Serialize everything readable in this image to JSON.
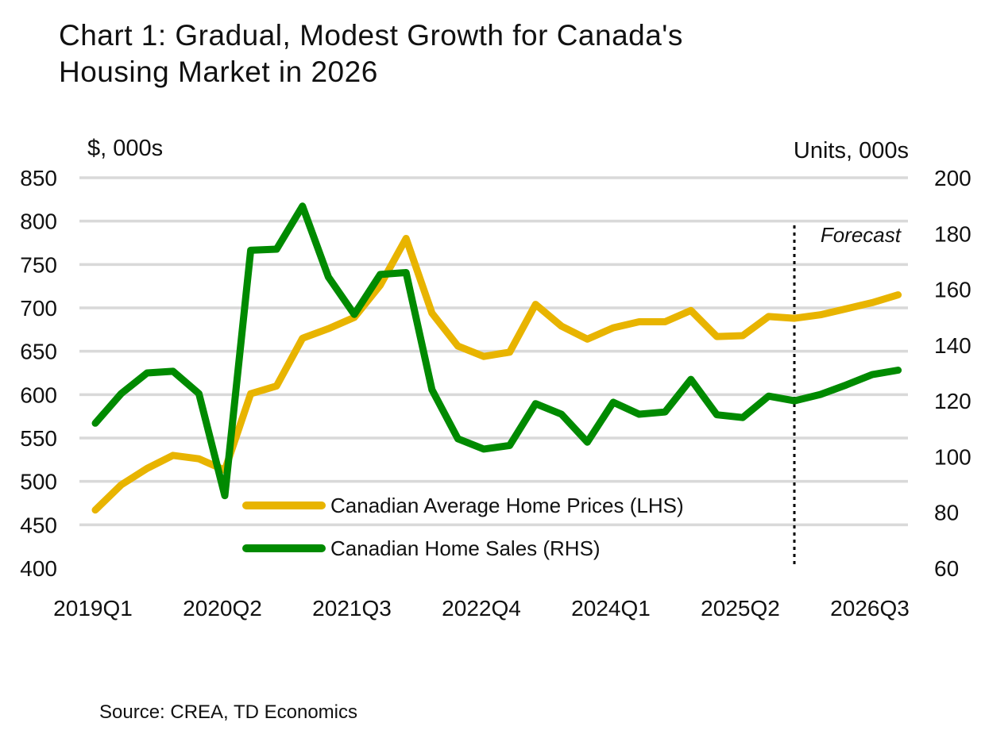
{
  "chart_data": {
    "type": "line",
    "title": "Chart 1: Gradual, Modest Growth for Canada's\nHousing Market in 2026",
    "source": "Source: CREA, TD Economics",
    "left_axis": {
      "label": "$, 000s",
      "ylim": [
        400,
        850
      ],
      "ticks": [
        400,
        450,
        500,
        550,
        600,
        650,
        700,
        750,
        800,
        850
      ]
    },
    "right_axis": {
      "label": "Units, 000s",
      "ylim": [
        60,
        200
      ],
      "ticks": [
        60,
        80,
        100,
        120,
        140,
        160,
        180,
        200
      ]
    },
    "x": [
      "2019Q1",
      "2019Q2",
      "2019Q3",
      "2019Q4",
      "2020Q1",
      "2020Q2",
      "2020Q3",
      "2020Q4",
      "2021Q1",
      "2021Q2",
      "2021Q3",
      "2021Q4",
      "2022Q1",
      "2022Q2",
      "2022Q3",
      "2022Q4",
      "2023Q1",
      "2023Q2",
      "2023Q3",
      "2023Q4",
      "2024Q1",
      "2024Q2",
      "2024Q3",
      "2024Q4",
      "2025Q1",
      "2025Q2",
      "2025Q3",
      "2025Q4",
      "2026Q1",
      "2026Q2",
      "2026Q3",
      "2026Q4"
    ],
    "x_tick_labels": [
      "2019Q1",
      "2020Q2",
      "2021Q3",
      "2022Q4",
      "2024Q1",
      "2025Q2",
      "2026Q3"
    ],
    "grid": true,
    "legend_placement": "bottom-center",
    "forecast": {
      "label": "Forecast",
      "start": "2025Q4"
    },
    "series": [
      {
        "name": "Canadian Average Home Prices (LHS)",
        "axis": "left",
        "color": "#E8B400",
        "values": [
          467,
          496,
          515,
          530,
          526,
          513,
          601,
          610,
          665,
          676,
          689,
          726,
          780,
          694,
          656,
          644,
          649,
          704,
          679,
          664,
          677,
          684,
          684,
          697,
          667,
          668,
          690,
          688,
          692,
          699,
          706,
          715
        ]
      },
      {
        "name": "Canadian Home Sales (RHS)",
        "axis": "right",
        "color": "#008A00",
        "values": [
          112,
          122.6,
          130,
          130.6,
          122.6,
          86,
          174,
          174.4,
          189.8,
          164.4,
          151,
          165.3,
          166,
          124,
          106.4,
          102.7,
          104,
          119,
          115.2,
          105.2,
          119.5,
          115.2,
          116,
          127.7,
          115,
          114,
          121.7,
          120,
          122.3,
          125.7,
          129.4,
          131
        ]
      }
    ],
    "colors": {
      "grid": "#D9D9D9"
    }
  }
}
